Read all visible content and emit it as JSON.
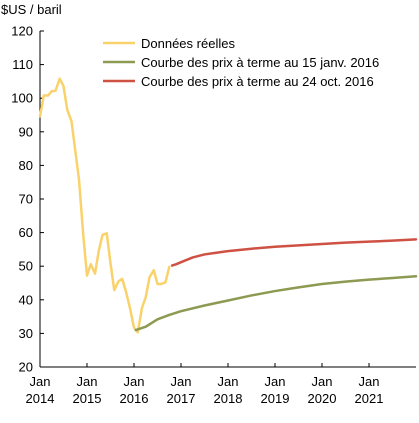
{
  "chart_data": {
    "type": "line",
    "ylabel": "$US / baril",
    "ylim": [
      20,
      120
    ],
    "yticks": [
      20,
      30,
      40,
      50,
      60,
      70,
      80,
      90,
      100,
      110,
      120
    ],
    "xlim": [
      2014.0,
      2022.0
    ],
    "xticks": [
      {
        "value": 2014,
        "line1": "Jan",
        "line2": "2014"
      },
      {
        "value": 2015,
        "line1": "Jan",
        "line2": "2015"
      },
      {
        "value": 2016,
        "line1": "Jan",
        "line2": "2016"
      },
      {
        "value": 2017,
        "line1": "Jan",
        "line2": "2017"
      },
      {
        "value": 2018,
        "line1": "Jan",
        "line2": "2018"
      },
      {
        "value": 2019,
        "line1": "Jan",
        "line2": "2019"
      },
      {
        "value": 2020,
        "line1": "Jan",
        "line2": "2020"
      },
      {
        "value": 2021,
        "line1": "Jan",
        "line2": "2021"
      }
    ],
    "grid": false,
    "legend_position": "top-center",
    "series": [
      {
        "name": "Données réelles",
        "color": "#f9d26b",
        "x": [
          2014.0,
          2014.08,
          2014.17,
          2014.25,
          2014.33,
          2014.42,
          2014.5,
          2014.58,
          2014.67,
          2014.75,
          2014.83,
          2014.92,
          2015.0,
          2015.08,
          2015.17,
          2015.25,
          2015.33,
          2015.42,
          2015.5,
          2015.58,
          2015.67,
          2015.75,
          2015.83,
          2015.92,
          2016.0,
          2016.08,
          2016.17,
          2016.25,
          2016.33,
          2016.42,
          2016.5,
          2016.58,
          2016.67,
          2016.75
        ],
        "y": [
          94.6,
          100.8,
          100.8,
          102.1,
          102.2,
          105.8,
          103.6,
          96.5,
          93.2,
          84.4,
          75.8,
          59.3,
          47.2,
          50.6,
          47.8,
          54.5,
          59.3,
          59.8,
          50.9,
          42.9,
          45.5,
          46.2,
          42.4,
          37.2,
          31.7,
          30.3,
          37.6,
          40.8,
          46.7,
          48.8,
          44.7,
          44.7,
          45.2,
          49.8
        ]
      },
      {
        "name": "Courbe des prix à terme au 15 janv. 2016",
        "color": "#8c9a52",
        "x": [
          2016.04,
          2016.25,
          2016.5,
          2016.75,
          2017.0,
          2017.5,
          2018.0,
          2018.5,
          2019.0,
          2019.5,
          2020.0,
          2020.5,
          2021.0,
          2021.5,
          2022.0
        ],
        "y": [
          31.0,
          32.0,
          34.2,
          35.5,
          36.6,
          38.3,
          39.8,
          41.3,
          42.6,
          43.7,
          44.7,
          45.4,
          46.0,
          46.5,
          47.0
        ]
      },
      {
        "name": "Courbe des prix à terme au 24 oct. 2016",
        "color": "#cf5143",
        "x": [
          2016.81,
          2016.9,
          2017.0,
          2017.25,
          2017.5,
          2017.75,
          2018.0,
          2018.5,
          2019.0,
          2019.5,
          2020.0,
          2020.5,
          2021.0,
          2021.5,
          2022.0
        ],
        "y": [
          50.2,
          50.6,
          51.2,
          52.6,
          53.5,
          54.0,
          54.5,
          55.2,
          55.8,
          56.2,
          56.6,
          57.0,
          57.3,
          57.6,
          58.0
        ]
      }
    ]
  }
}
